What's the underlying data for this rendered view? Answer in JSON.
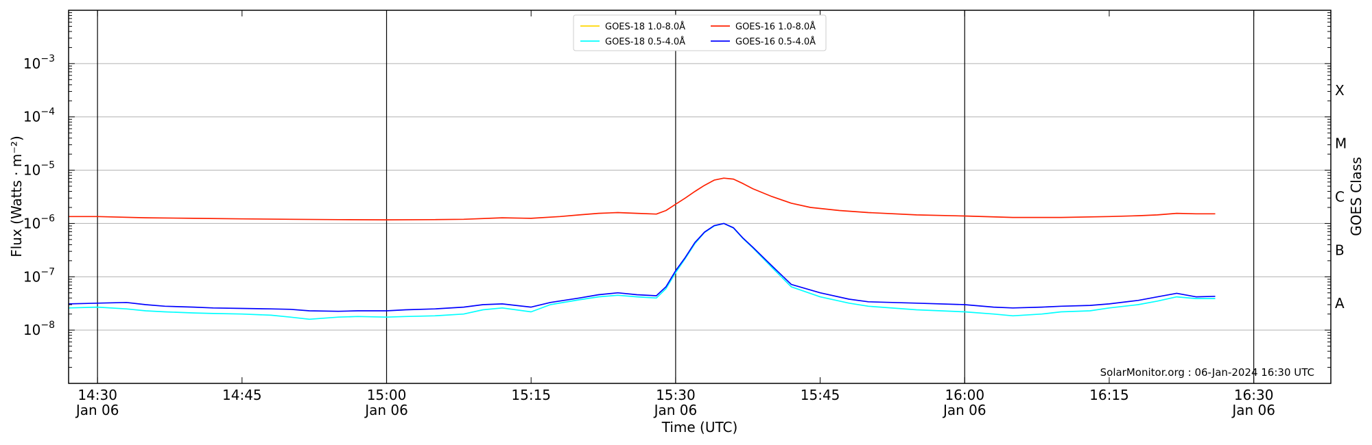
{
  "chart_data": {
    "type": "line",
    "y_scale": "log",
    "xlabel": "Time (UTC)",
    "ylabel": "Flux (Watts · m⁻²)",
    "y2label": "GOES Class",
    "credit": "SolarMonitor.org : 06-Jan-2024 16:30 UTC",
    "xlim": [
      "2024-01-06 14:27",
      "2024-01-06 16:38"
    ],
    "ylim": [
      1e-09,
      0.01
    ],
    "grid": "horizontal at decades; vertical at half hours",
    "legend_position": "top-center",
    "x_ticks": [
      {
        "time": "14:30",
        "date": "Jan 06"
      },
      {
        "time": "14:45",
        "date": ""
      },
      {
        "time": "15:00",
        "date": "Jan 06"
      },
      {
        "time": "15:15",
        "date": ""
      },
      {
        "time": "15:30",
        "date": "Jan 06"
      },
      {
        "time": "15:45",
        "date": ""
      },
      {
        "time": "16:00",
        "date": "Jan 06"
      },
      {
        "time": "16:15",
        "date": ""
      },
      {
        "time": "16:30",
        "date": "Jan 06"
      }
    ],
    "y_ticks": [
      {
        "exp": "-8",
        "value": 1e-08
      },
      {
        "exp": "-7",
        "value": 1e-07
      },
      {
        "exp": "-6",
        "value": 1e-06
      },
      {
        "exp": "-5",
        "value": 1e-05
      },
      {
        "exp": "-4",
        "value": 0.0001
      },
      {
        "exp": "-3",
        "value": 0.001
      }
    ],
    "goes_classes": [
      {
        "label": "A",
        "value": 3.16e-08
      },
      {
        "label": "B",
        "value": 3.16e-07
      },
      {
        "label": "C",
        "value": 3.16e-06
      },
      {
        "label": "M",
        "value": 3.16e-05
      },
      {
        "label": "X",
        "value": 0.000316
      }
    ],
    "legend": [
      {
        "name": "GOES-18 1.0-8.0Å",
        "color": "#ffd700"
      },
      {
        "name": "GOES-18 0.5-4.0Å",
        "color": "#00ffff"
      },
      {
        "name": "GOES-16 1.0-8.0Å",
        "color": "#ff2000"
      },
      {
        "name": "GOES-16 0.5-4.0Å",
        "color": "#0000ff"
      }
    ],
    "series": [
      {
        "name": "GOES-16 1.0-8.0Å",
        "color": "#ff2000",
        "x": [
          "14:27",
          "14:30",
          "14:35",
          "14:40",
          "14:45",
          "14:50",
          "14:55",
          "15:00",
          "15:05",
          "15:08",
          "15:12",
          "15:15",
          "15:18",
          "15:20",
          "15:22",
          "15:24",
          "15:26",
          "15:28",
          "15:29",
          "15:30",
          "15:31",
          "15:32",
          "15:33",
          "15:34",
          "15:35",
          "15:36",
          "15:37",
          "15:38",
          "15:40",
          "15:42",
          "15:44",
          "15:47",
          "15:50",
          "15:55",
          "16:00",
          "16:05",
          "16:10",
          "16:15",
          "16:18",
          "16:20",
          "16:22",
          "16:24",
          "16:26"
        ],
        "y": [
          1.35e-06,
          1.35e-06,
          1.28e-06,
          1.25e-06,
          1.22e-06,
          1.2e-06,
          1.18e-06,
          1.17e-06,
          1.18e-06,
          1.2e-06,
          1.28e-06,
          1.25e-06,
          1.35e-06,
          1.45e-06,
          1.55e-06,
          1.6e-06,
          1.55e-06,
          1.5e-06,
          1.75e-06,
          2.3e-06,
          3e-06,
          4e-06,
          5.2e-06,
          6.5e-06,
          7.1e-06,
          6.8e-06,
          5.6e-06,
          4.5e-06,
          3.2e-06,
          2.4e-06,
          2e-06,
          1.75e-06,
          1.6e-06,
          1.45e-06,
          1.38e-06,
          1.3e-06,
          1.3e-06,
          1.35e-06,
          1.4e-06,
          1.45e-06,
          1.55e-06,
          1.52e-06,
          1.52e-06
        ]
      },
      {
        "name": "GOES-18 0.5-4.0Å",
        "color": "#00ffff",
        "x": [
          "14:27",
          "14:30",
          "14:33",
          "14:35",
          "14:37",
          "14:40",
          "14:42",
          "14:45",
          "14:48",
          "14:50",
          "14:52",
          "14:55",
          "14:57",
          "15:00",
          "15:02",
          "15:05",
          "15:08",
          "15:10",
          "15:12",
          "15:15",
          "15:17",
          "15:20",
          "15:22",
          "15:24",
          "15:26",
          "15:28",
          "15:29",
          "15:30",
          "15:31",
          "15:32",
          "15:33",
          "15:34",
          "15:35",
          "15:36",
          "15:37",
          "15:38",
          "15:40",
          "15:42",
          "15:45",
          "15:48",
          "15:50",
          "15:55",
          "16:00",
          "16:03",
          "16:05",
          "16:08",
          "16:10",
          "16:13",
          "16:15",
          "16:18",
          "16:20",
          "16:22",
          "16:24",
          "16:26"
        ],
        "y": [
          2.6e-08,
          2.7e-08,
          2.5e-08,
          2.3e-08,
          2.2e-08,
          2.1e-08,
          2.05e-08,
          2e-08,
          1.9e-08,
          1.75e-08,
          1.6e-08,
          1.75e-08,
          1.8e-08,
          1.75e-08,
          1.8e-08,
          1.85e-08,
          2e-08,
          2.4e-08,
          2.6e-08,
          2.2e-08,
          3e-08,
          3.7e-08,
          4.2e-08,
          4.5e-08,
          4.2e-08,
          4e-08,
          6e-08,
          1.2e-07,
          2.2e-07,
          4.2e-07,
          6.8e-07,
          9e-07,
          1e-06,
          8.2e-07,
          5.2e-07,
          3.5e-07,
          1.5e-07,
          6.5e-08,
          4.2e-08,
          3.2e-08,
          2.8e-08,
          2.4e-08,
          2.2e-08,
          2e-08,
          1.85e-08,
          2e-08,
          2.2e-08,
          2.3e-08,
          2.6e-08,
          3e-08,
          3.5e-08,
          4.2e-08,
          3.9e-08,
          3.9e-08
        ]
      },
      {
        "name": "GOES-16 0.5-4.0Å",
        "color": "#0000ff",
        "x": [
          "14:27",
          "14:30",
          "14:33",
          "14:35",
          "14:37",
          "14:40",
          "14:42",
          "14:45",
          "14:48",
          "14:50",
          "14:52",
          "14:55",
          "14:57",
          "15:00",
          "15:02",
          "15:05",
          "15:08",
          "15:10",
          "15:12",
          "15:15",
          "15:17",
          "15:20",
          "15:22",
          "15:24",
          "15:26",
          "15:28",
          "15:29",
          "15:30",
          "15:31",
          "15:32",
          "15:33",
          "15:34",
          "15:35",
          "15:36",
          "15:37",
          "15:38",
          "15:40",
          "15:42",
          "15:45",
          "15:48",
          "15:50",
          "15:55",
          "16:00",
          "16:03",
          "16:05",
          "16:08",
          "16:10",
          "16:13",
          "16:15",
          "16:18",
          "16:20",
          "16:22",
          "16:24",
          "16:26"
        ],
        "y": [
          3.1e-08,
          3.2e-08,
          3.3e-08,
          3e-08,
          2.8e-08,
          2.7e-08,
          2.6e-08,
          2.55e-08,
          2.5e-08,
          2.45e-08,
          2.3e-08,
          2.25e-08,
          2.3e-08,
          2.3e-08,
          2.4e-08,
          2.5e-08,
          2.7e-08,
          3e-08,
          3.1e-08,
          2.7e-08,
          3.3e-08,
          4e-08,
          4.6e-08,
          5e-08,
          4.6e-08,
          4.4e-08,
          6.5e-08,
          1.3e-07,
          2.3e-07,
          4.4e-07,
          6.9e-07,
          9.1e-07,
          1e-06,
          8.3e-07,
          5.3e-07,
          3.6e-07,
          1.6e-07,
          7.2e-08,
          5e-08,
          3.8e-08,
          3.4e-08,
          3.2e-08,
          3e-08,
          2.7e-08,
          2.6e-08,
          2.7e-08,
          2.8e-08,
          2.9e-08,
          3.1e-08,
          3.6e-08,
          4.2e-08,
          4.9e-08,
          4.2e-08,
          4.3e-08
        ]
      }
    ]
  }
}
